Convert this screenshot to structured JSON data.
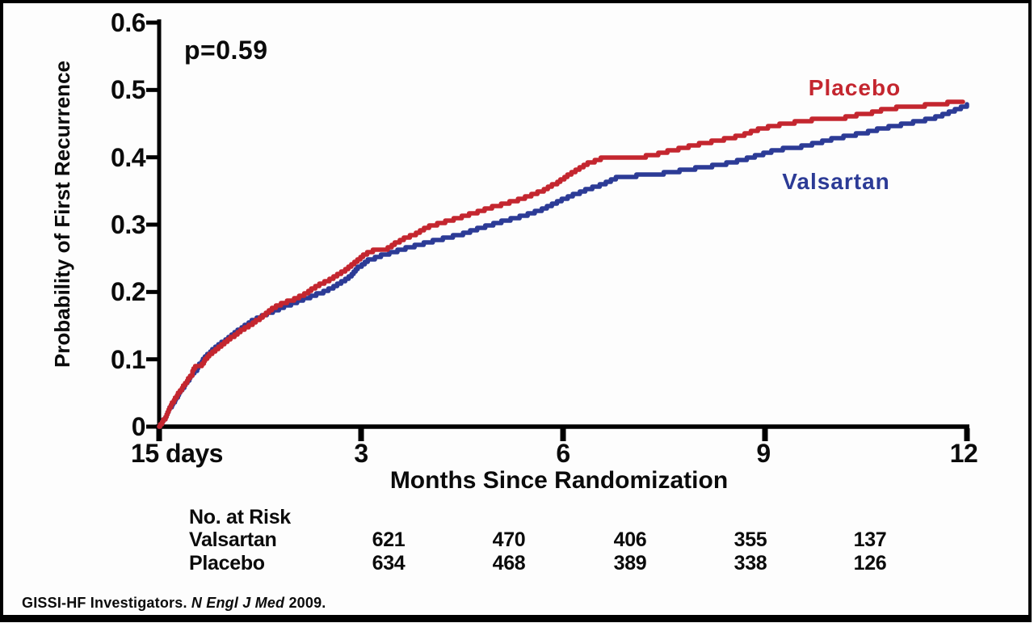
{
  "chart_data": {
    "type": "line",
    "subtype": "kaplan-meier-step",
    "title": "",
    "p_value": "p=0.59",
    "xlabel": "Months Since Randomization",
    "ylabel": "Probability of First Recurrence",
    "xlim": [
      0,
      12
    ],
    "ylim": [
      0,
      0.6
    ],
    "grid": false,
    "legend_position": "labels-at-curves",
    "x_tick_labels": [
      "15 days",
      "3",
      "6",
      "9",
      "12"
    ],
    "x_tick_values": [
      0,
      3,
      6,
      9,
      12
    ],
    "y_tick_labels": [
      "0.6",
      "0.5",
      "0.4",
      "0.3",
      "0.2",
      "0.1",
      "0"
    ],
    "y_tick_values": [
      0.6,
      0.5,
      0.4,
      0.3,
      0.2,
      0.1,
      0
    ],
    "series": [
      {
        "name": "Valsartan",
        "color": "#2c3b96",
        "points": [
          [
            0,
            0
          ],
          [
            0.08,
            0.012
          ],
          [
            0.16,
            0.028
          ],
          [
            0.3,
            0.05
          ],
          [
            0.45,
            0.072
          ],
          [
            0.55,
            0.085
          ],
          [
            0.62,
            0.096
          ],
          [
            0.7,
            0.106
          ],
          [
            0.88,
            0.121
          ],
          [
            1.0,
            0.13
          ],
          [
            1.12,
            0.139
          ],
          [
            1.24,
            0.148
          ],
          [
            1.36,
            0.156
          ],
          [
            1.48,
            0.162
          ],
          [
            1.6,
            0.168
          ],
          [
            1.72,
            0.172
          ],
          [
            1.84,
            0.178
          ],
          [
            1.96,
            0.182
          ],
          [
            2.08,
            0.187
          ],
          [
            2.2,
            0.191
          ],
          [
            2.32,
            0.196
          ],
          [
            2.44,
            0.2
          ],
          [
            2.6,
            0.208
          ],
          [
            2.8,
            0.22
          ],
          [
            2.95,
            0.236
          ],
          [
            3.1,
            0.247
          ],
          [
            3.3,
            0.254
          ],
          [
            3.6,
            0.263
          ],
          [
            3.9,
            0.271
          ],
          [
            4.2,
            0.279
          ],
          [
            4.5,
            0.286
          ],
          [
            4.8,
            0.296
          ],
          [
            5.1,
            0.305
          ],
          [
            5.4,
            0.313
          ],
          [
            5.7,
            0.323
          ],
          [
            5.92,
            0.334
          ],
          [
            6.1,
            0.342
          ],
          [
            6.3,
            0.35
          ],
          [
            6.5,
            0.357
          ],
          [
            6.65,
            0.363
          ],
          [
            6.8,
            0.37
          ],
          [
            7.0,
            0.372
          ],
          [
            7.3,
            0.374
          ],
          [
            7.55,
            0.377
          ],
          [
            7.8,
            0.381
          ],
          [
            8.0,
            0.384
          ],
          [
            8.2,
            0.387
          ],
          [
            8.45,
            0.391
          ],
          [
            8.7,
            0.397
          ],
          [
            8.9,
            0.403
          ],
          [
            9.1,
            0.409
          ],
          [
            9.3,
            0.413
          ],
          [
            9.55,
            0.416
          ],
          [
            9.76,
            0.421
          ],
          [
            10.0,
            0.427
          ],
          [
            10.2,
            0.431
          ],
          [
            10.5,
            0.437
          ],
          [
            10.7,
            0.442
          ],
          [
            10.9,
            0.446
          ],
          [
            11.2,
            0.452
          ],
          [
            11.5,
            0.458
          ],
          [
            11.7,
            0.465
          ],
          [
            11.85,
            0.471
          ],
          [
            12.0,
            0.477
          ]
        ]
      },
      {
        "name": "Placebo",
        "color": "#c4262f",
        "points": [
          [
            0,
            0
          ],
          [
            0.08,
            0.012
          ],
          [
            0.16,
            0.03
          ],
          [
            0.28,
            0.049
          ],
          [
            0.4,
            0.066
          ],
          [
            0.48,
            0.078
          ],
          [
            0.52,
            0.088
          ],
          [
            0.62,
            0.091
          ],
          [
            0.7,
            0.102
          ],
          [
            0.76,
            0.108
          ],
          [
            0.88,
            0.118
          ],
          [
            1.0,
            0.127
          ],
          [
            1.12,
            0.136
          ],
          [
            1.24,
            0.145
          ],
          [
            1.36,
            0.151
          ],
          [
            1.48,
            0.16
          ],
          [
            1.6,
            0.169
          ],
          [
            1.72,
            0.178
          ],
          [
            1.84,
            0.184
          ],
          [
            1.96,
            0.187
          ],
          [
            2.08,
            0.193
          ],
          [
            2.2,
            0.199
          ],
          [
            2.32,
            0.208
          ],
          [
            2.44,
            0.214
          ],
          [
            2.6,
            0.222
          ],
          [
            2.75,
            0.232
          ],
          [
            2.9,
            0.243
          ],
          [
            3.0,
            0.252
          ],
          [
            3.1,
            0.258
          ],
          [
            3.2,
            0.262
          ],
          [
            3.38,
            0.264
          ],
          [
            3.5,
            0.272
          ],
          [
            3.65,
            0.28
          ],
          [
            3.8,
            0.286
          ],
          [
            3.95,
            0.295
          ],
          [
            4.1,
            0.3
          ],
          [
            4.3,
            0.306
          ],
          [
            4.5,
            0.312
          ],
          [
            4.7,
            0.318
          ],
          [
            4.9,
            0.325
          ],
          [
            5.1,
            0.33
          ],
          [
            5.3,
            0.336
          ],
          [
            5.5,
            0.343
          ],
          [
            5.7,
            0.351
          ],
          [
            5.9,
            0.362
          ],
          [
            6.05,
            0.372
          ],
          [
            6.2,
            0.381
          ],
          [
            6.35,
            0.39
          ],
          [
            6.5,
            0.396
          ],
          [
            6.6,
            0.399
          ],
          [
            7.2,
            0.401
          ],
          [
            7.4,
            0.405
          ],
          [
            7.55,
            0.409
          ],
          [
            7.7,
            0.412
          ],
          [
            7.9,
            0.417
          ],
          [
            8.1,
            0.421
          ],
          [
            8.3,
            0.425
          ],
          [
            8.5,
            0.429
          ],
          [
            8.7,
            0.434
          ],
          [
            8.85,
            0.44
          ],
          [
            9.05,
            0.445
          ],
          [
            9.2,
            0.448
          ],
          [
            9.45,
            0.452
          ],
          [
            9.65,
            0.455
          ],
          [
            9.85,
            0.457
          ],
          [
            10.15,
            0.458
          ],
          [
            10.3,
            0.462
          ],
          [
            10.5,
            0.464
          ],
          [
            10.65,
            0.468
          ],
          [
            10.8,
            0.472
          ],
          [
            11.0,
            0.474
          ],
          [
            11.3,
            0.476
          ],
          [
            11.45,
            0.478
          ],
          [
            11.65,
            0.48
          ],
          [
            11.94,
            0.483
          ]
        ]
      }
    ]
  },
  "risk_table": {
    "header": "No. at Risk",
    "rows": [
      {
        "label": "Valsartan",
        "values": [
          "621",
          "470",
          "406",
          "355",
          "137"
        ]
      },
      {
        "label": "Placebo",
        "values": [
          "634",
          "468",
          "389",
          "338",
          "126"
        ]
      }
    ]
  },
  "footer": {
    "prefix": "GISSI-HF Investigators. ",
    "journal": "N Engl J Med",
    "suffix": " 2009."
  }
}
